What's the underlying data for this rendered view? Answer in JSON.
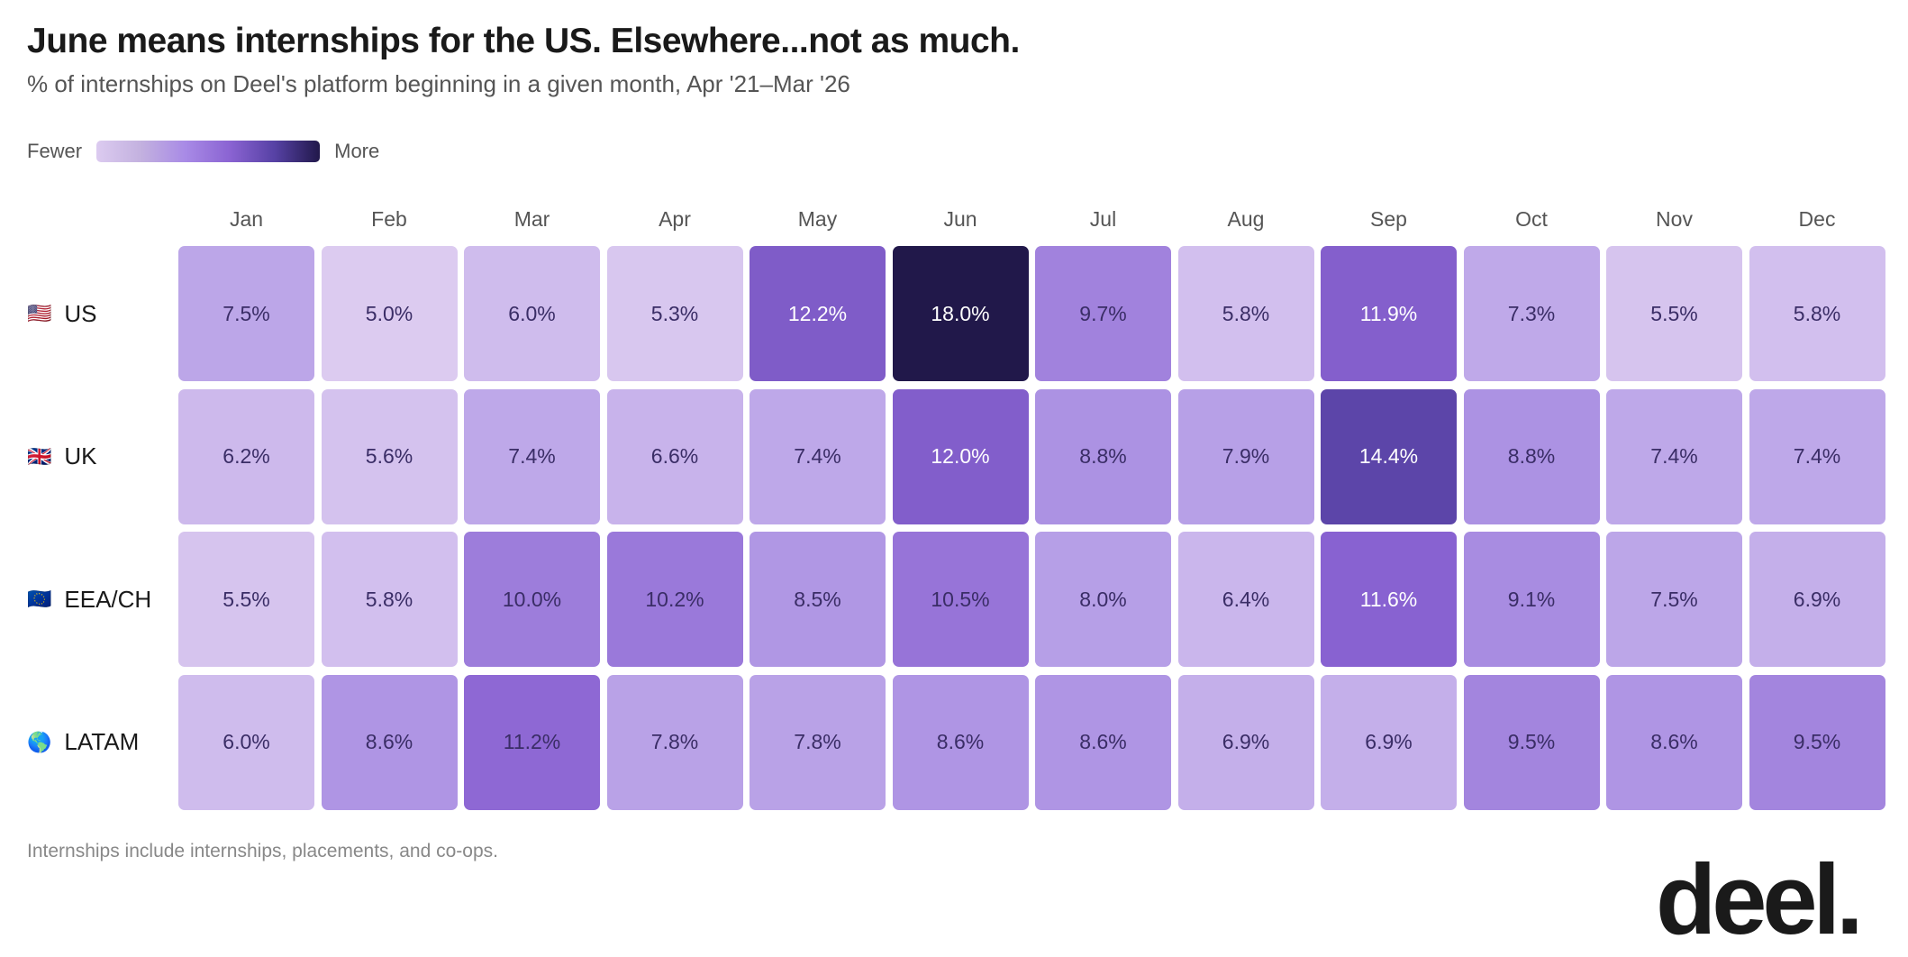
{
  "title": "June means internships for the US. Elsewhere...not as much.",
  "subtitle": "% of internships on Deel's platform beginning in a given month, Apr '21–Mar '26",
  "legend": {
    "low": "Fewer",
    "high": "More"
  },
  "footer": "Internships include internships, placements, and co-ops.",
  "logo": "deel.",
  "chart_data": {
    "type": "heatmap",
    "title": "June means internships for the US. Elsewhere...not as much.",
    "subtitle": "% of internships on Deel's platform beginning in a given month, Apr '21–Mar '26",
    "columns": [
      "Jan",
      "Feb",
      "Mar",
      "Apr",
      "May",
      "Jun",
      "Jul",
      "Aug",
      "Sep",
      "Oct",
      "Nov",
      "Dec"
    ],
    "rows": [
      {
        "label": "US",
        "icon": "us-flag-icon",
        "flag": "🇺🇸",
        "values": [
          7.5,
          5.0,
          6.0,
          5.3,
          12.2,
          18.0,
          9.7,
          5.8,
          11.9,
          7.3,
          5.5,
          5.8
        ]
      },
      {
        "label": "UK",
        "icon": "uk-flag-icon",
        "flag": "🇬🇧",
        "values": [
          6.2,
          5.6,
          7.4,
          6.6,
          7.4,
          12.0,
          8.8,
          7.9,
          14.4,
          8.8,
          7.4,
          7.4
        ]
      },
      {
        "label": "EEA/CH",
        "icon": "eu-flag-icon",
        "flag": "🇪🇺",
        "values": [
          5.5,
          5.8,
          10.0,
          10.2,
          8.5,
          10.5,
          8.0,
          6.4,
          11.6,
          9.1,
          7.5,
          6.9
        ]
      },
      {
        "label": "LATAM",
        "icon": "globe-americas-icon",
        "flag": "🌎",
        "values": [
          6.0,
          8.6,
          11.2,
          7.8,
          7.8,
          8.6,
          8.6,
          6.9,
          6.9,
          9.5,
          8.6,
          9.5
        ]
      }
    ],
    "value_suffix": "%",
    "color_scale": [
      "#dccbf0",
      "#b39be6",
      "#8a63d2",
      "#5641a4",
      "#21184a"
    ]
  }
}
